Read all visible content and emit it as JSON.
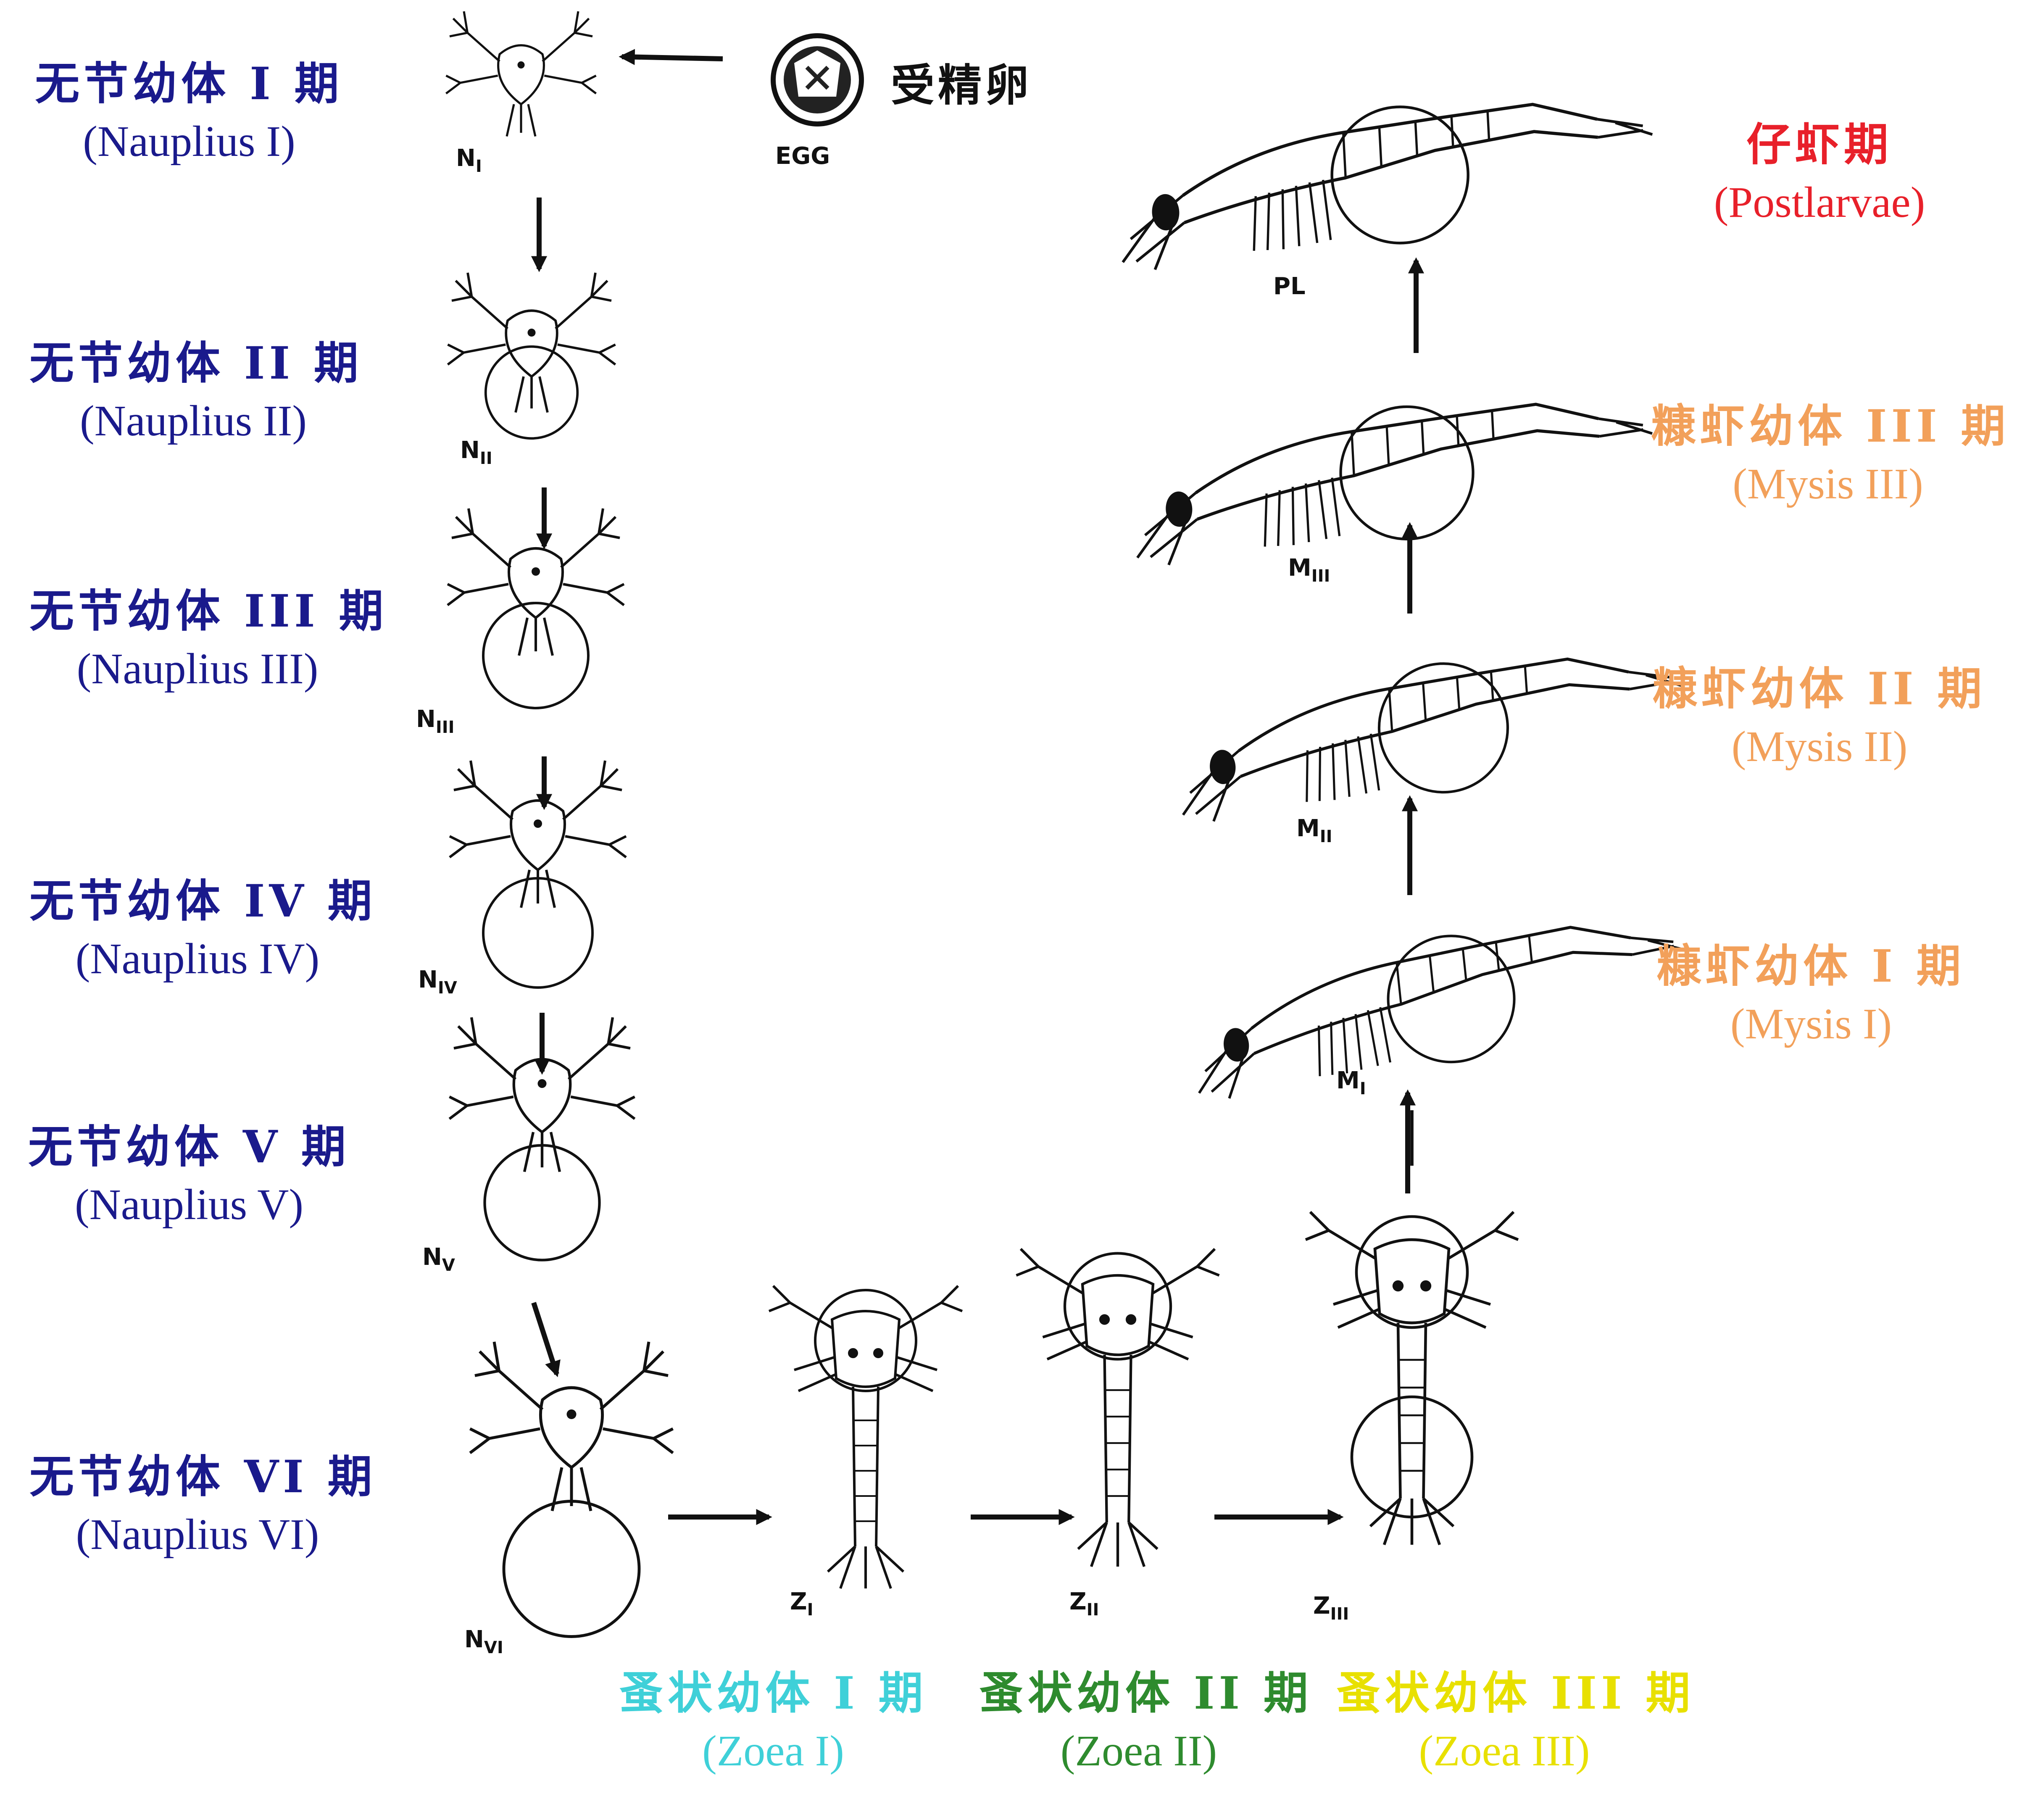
{
  "egg": {
    "zh": "受精卵",
    "code": "EGG"
  },
  "nauplius": [
    {
      "zh": "无节幼体 I 期",
      "en": "(Nauplius I)",
      "code": "N",
      "sub": "I"
    },
    {
      "zh": "无节幼体 II 期",
      "en": "(Nauplius II)",
      "code": "N",
      "sub": "II"
    },
    {
      "zh": "无节幼体 III 期",
      "en": "(Nauplius III)",
      "code": "N",
      "sub": "III"
    },
    {
      "zh": "无节幼体 IV 期",
      "en": "(Nauplius IV)",
      "code": "N",
      "sub": "IV"
    },
    {
      "zh": "无节幼体 V 期",
      "en": "(Nauplius V)",
      "code": "N",
      "sub": "V"
    },
    {
      "zh": "无节幼体 VI 期",
      "en": "(Nauplius VI)",
      "code": "N",
      "sub": "VI"
    }
  ],
  "zoea": [
    {
      "zh": "蚤状幼体 I 期",
      "en": "(Zoea I)",
      "code": "Z",
      "sub": "I"
    },
    {
      "zh": "蚤状幼体 II 期",
      "en": "(Zoea II)",
      "code": "Z",
      "sub": "II"
    },
    {
      "zh": "蚤状幼体 III 期",
      "en": "(Zoea III)",
      "code": "Z",
      "sub": "III"
    }
  ],
  "mysis": [
    {
      "zh": "糠虾幼体 I 期",
      "en": "(Mysis I)",
      "code": "M",
      "sub": "I"
    },
    {
      "zh": "糠虾幼体 II 期",
      "en": "(Mysis II)",
      "code": "M",
      "sub": "II"
    },
    {
      "zh": "糠虾幼体 III 期",
      "en": "(Mysis III)",
      "code": "M",
      "sub": "III"
    }
  ],
  "postlarvae": {
    "zh": "仔虾期",
    "en": "(Postlarvae)",
    "code": "PL"
  },
  "colors": {
    "nauplius": "#1a1a8c",
    "zoea_1": "#3fd0d8",
    "zoea_2": "#2e8b2e",
    "zoea_3": "#e8e000",
    "mysis": "#f2a05a",
    "postlarvae": "#e8202a"
  }
}
